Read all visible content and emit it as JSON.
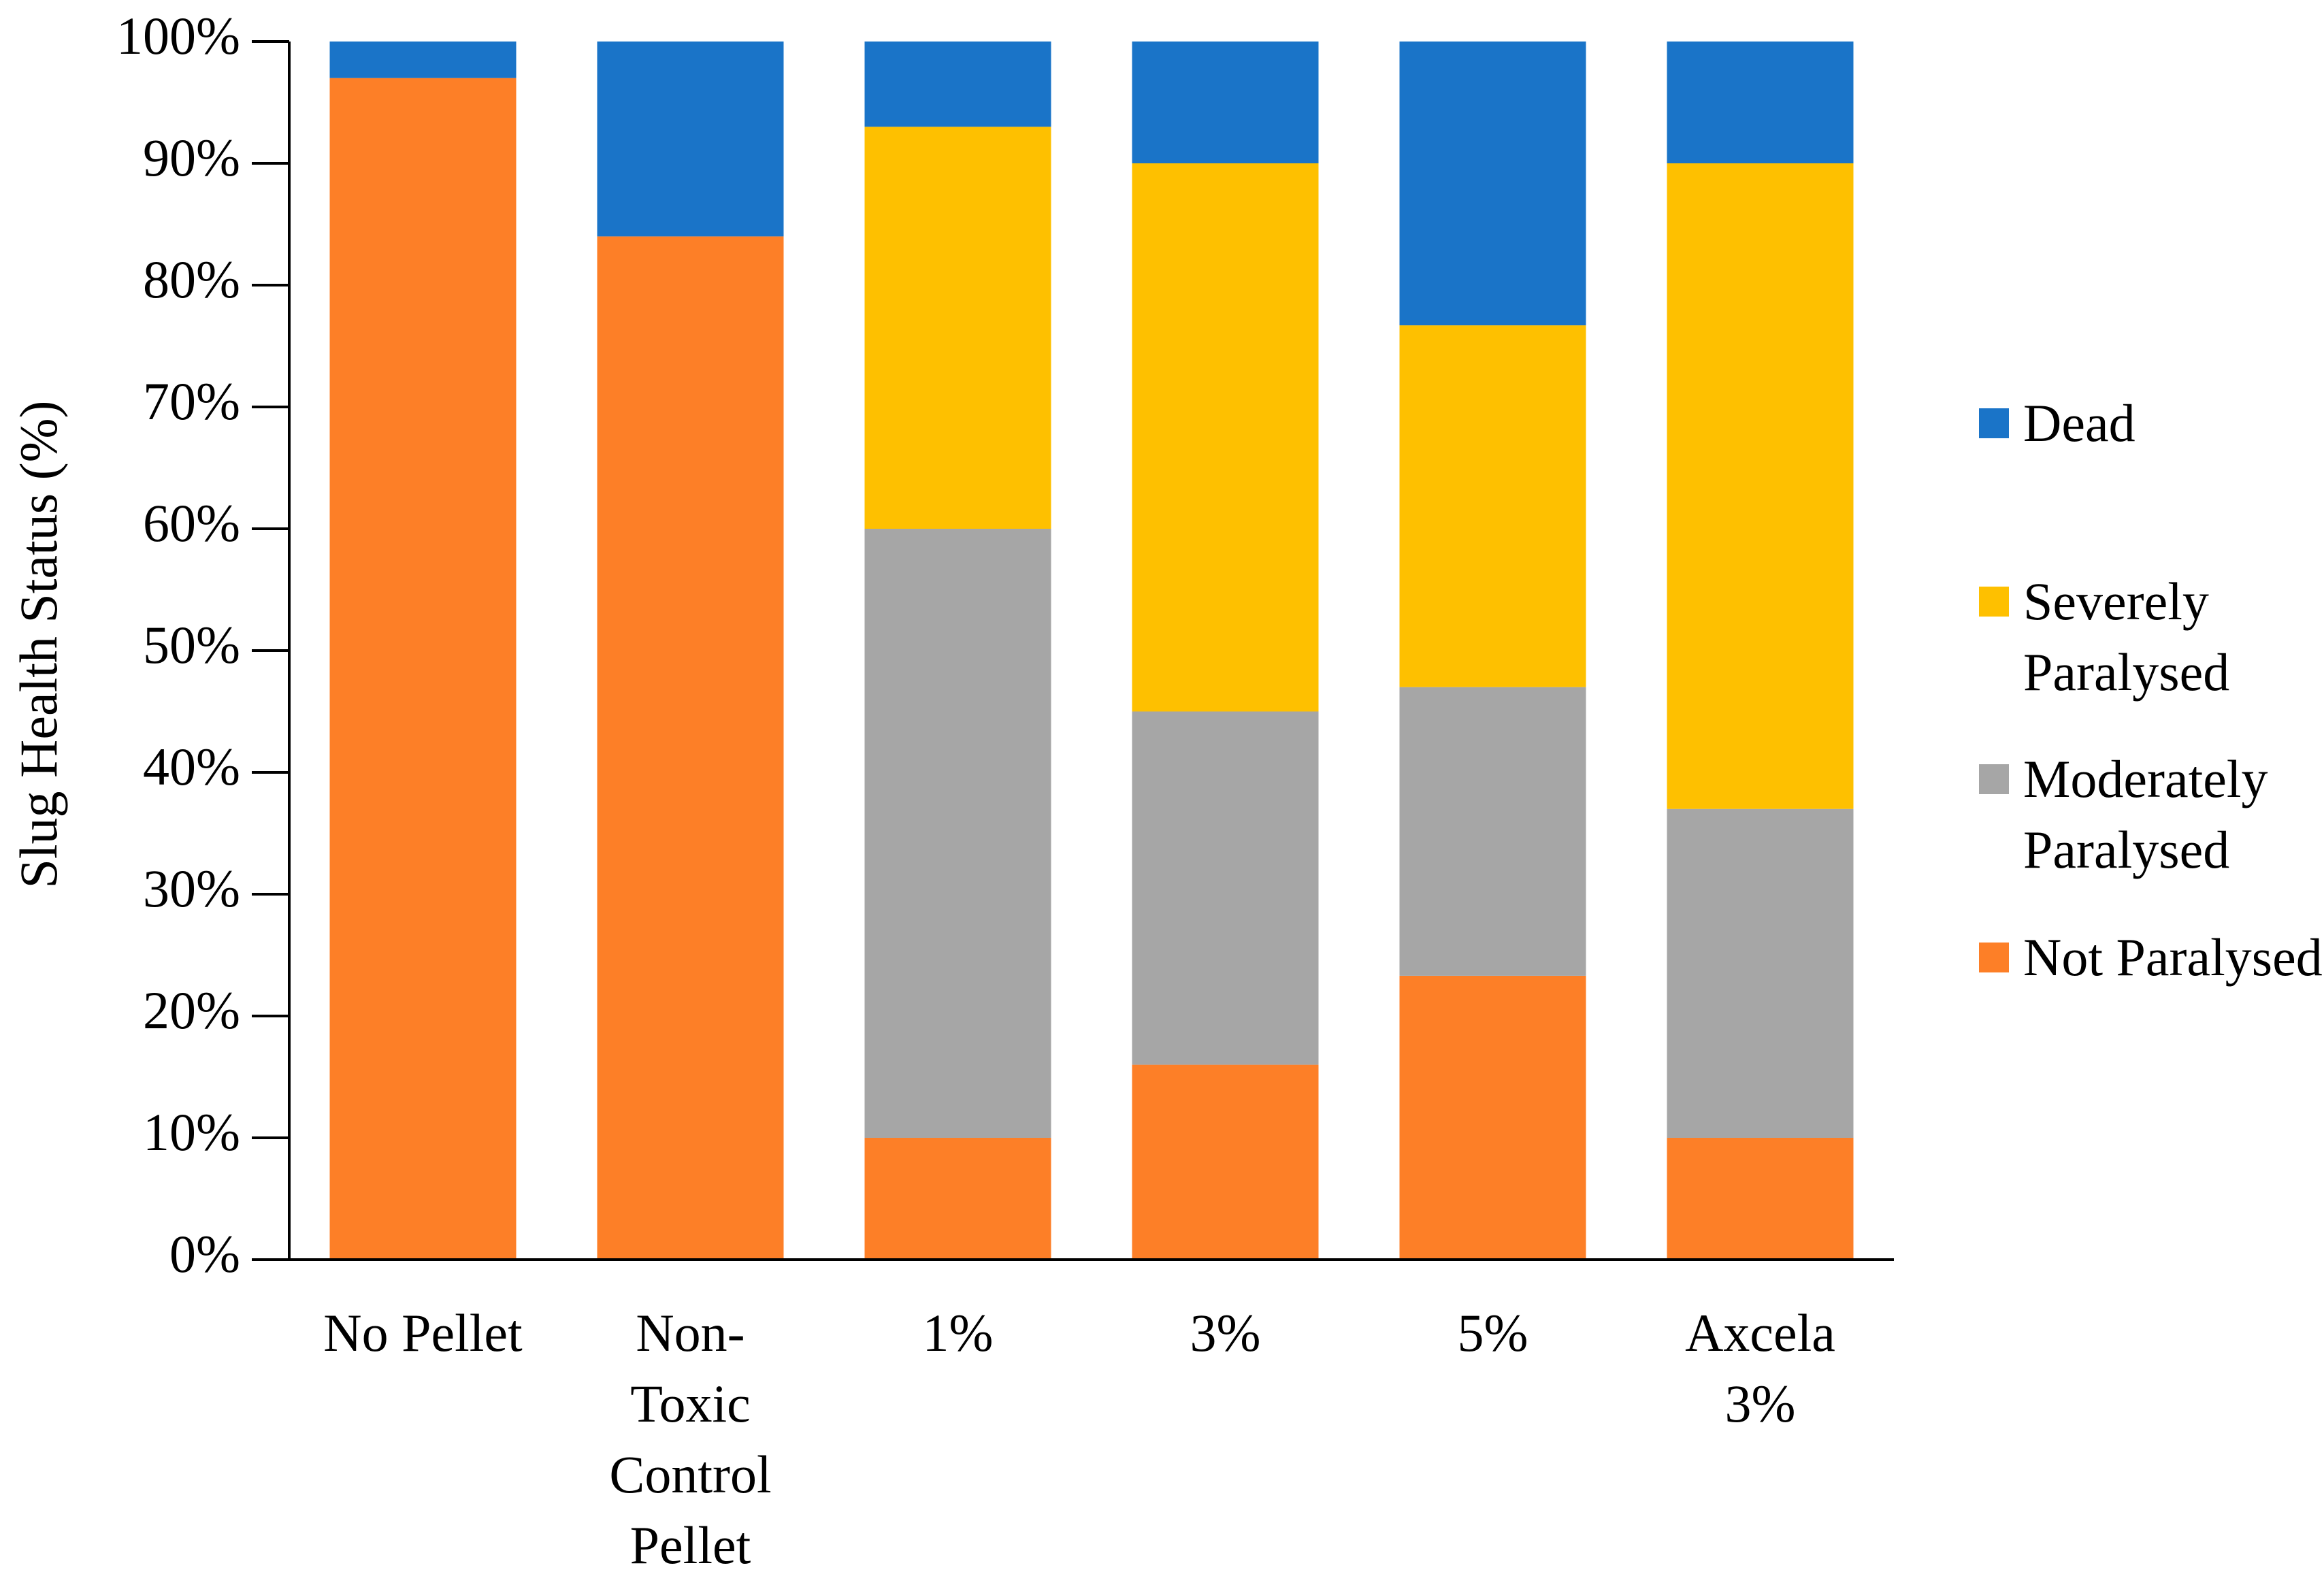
{
  "chart_data": {
    "type": "stacked-bar",
    "y_label": "Slug Health Status (%)",
    "categories": [
      "No Pellet",
      "Non-Toxic Control Pellet",
      "1%",
      "3%",
      "5%",
      "Axcela 3%"
    ],
    "series": [
      {
        "name": "Not Paralysed",
        "color": "#fd7f27",
        "values": [
          97,
          84,
          10,
          16,
          23.3,
          10
        ]
      },
      {
        "name": "Moderately Paralysed",
        "color": "#a6a6a6",
        "values": [
          0,
          0,
          50,
          29,
          23.7,
          27
        ]
      },
      {
        "name": "Severely Paralysed",
        "color": "#fec000",
        "values": [
          0,
          0,
          33,
          45,
          29.7,
          53
        ]
      },
      {
        "name": "Dead",
        "color": "#1a74c8",
        "values": [
          3,
          16,
          7,
          10,
          23.3,
          10
        ]
      }
    ],
    "ylim": [
      0,
      100
    ],
    "yticks": [
      {
        "value": 0,
        "label": "0%"
      },
      {
        "value": 10,
        "label": "10%"
      },
      {
        "value": 20,
        "label": "20%"
      },
      {
        "value": 30,
        "label": "30%"
      },
      {
        "value": 40,
        "label": "40%"
      },
      {
        "value": 50,
        "label": "50%"
      },
      {
        "value": 60,
        "label": "60%"
      },
      {
        "value": 70,
        "label": "70%"
      },
      {
        "value": 80,
        "label": "80%"
      },
      {
        "value": 90,
        "label": "90%"
      },
      {
        "value": 100,
        "label": "100%"
      }
    ],
    "legend": "right"
  }
}
